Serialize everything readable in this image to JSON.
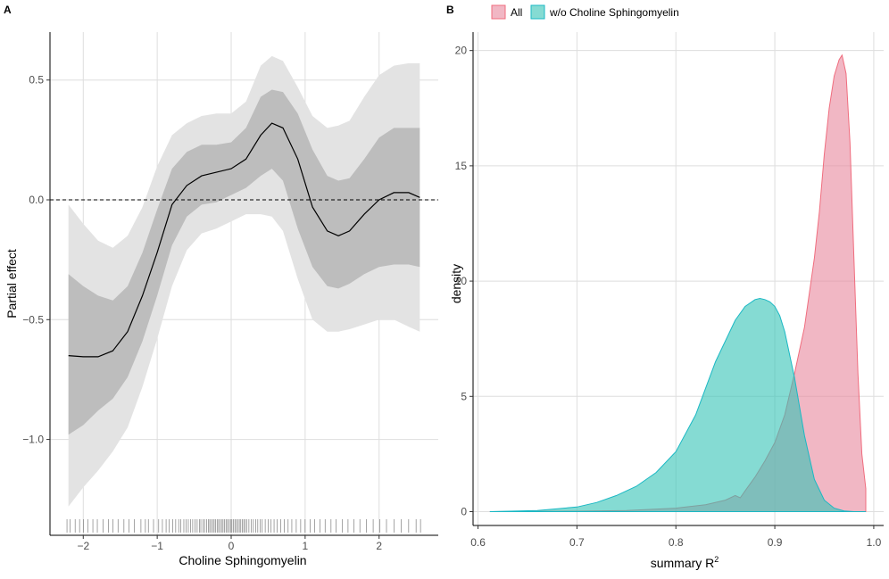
{
  "chart_data": [
    {
      "panel": "A",
      "type": "line",
      "xlabel": "Choline Sphingomyelin",
      "ylabel": "Partial effect",
      "xlim": [
        -2.45,
        2.8
      ],
      "ylim": [
        -1.4,
        0.7
      ],
      "xticks": [
        -2,
        -1,
        0,
        1,
        2
      ],
      "xtick_labels": [
        "−2",
        "−1",
        "0",
        "1",
        "2"
      ],
      "yticks": [
        -1.0,
        -0.5,
        0.0,
        0.5
      ],
      "ytick_labels": [
        "−1.0",
        "−0.5",
        "0.0",
        "0.5"
      ],
      "grid": true,
      "reference_line": 0,
      "x": [
        -2.2,
        -2.0,
        -1.8,
        -1.6,
        -1.4,
        -1.2,
        -1.0,
        -0.8,
        -0.6,
        -0.4,
        -0.2,
        0.0,
        0.2,
        0.4,
        0.55,
        0.7,
        0.9,
        1.1,
        1.3,
        1.45,
        1.6,
        1.8,
        2.0,
        2.2,
        2.4,
        2.55
      ],
      "fit": [
        -0.65,
        -0.655,
        -0.655,
        -0.63,
        -0.55,
        -0.4,
        -0.22,
        -0.02,
        0.06,
        0.1,
        0.115,
        0.13,
        0.17,
        0.27,
        0.32,
        0.3,
        0.17,
        -0.03,
        -0.13,
        -0.15,
        -0.13,
        -0.06,
        0.0,
        0.03,
        0.03,
        0.01
      ],
      "inner_band": {
        "lower": [
          -0.98,
          -0.94,
          -0.88,
          -0.83,
          -0.74,
          -0.59,
          -0.4,
          -0.19,
          -0.07,
          -0.02,
          -0.01,
          0.02,
          0.05,
          0.1,
          0.13,
          0.08,
          -0.12,
          -0.28,
          -0.36,
          -0.37,
          -0.35,
          -0.31,
          -0.28,
          -0.27,
          -0.27,
          -0.28
        ],
        "upper": [
          -0.31,
          -0.36,
          -0.4,
          -0.42,
          -0.36,
          -0.22,
          -0.04,
          0.13,
          0.2,
          0.23,
          0.23,
          0.24,
          0.3,
          0.43,
          0.46,
          0.45,
          0.36,
          0.21,
          0.1,
          0.08,
          0.09,
          0.17,
          0.26,
          0.3,
          0.3,
          0.3
        ]
      },
      "outer_band": {
        "lower": [
          -1.28,
          -1.2,
          -1.13,
          -1.05,
          -0.95,
          -0.78,
          -0.58,
          -0.36,
          -0.21,
          -0.14,
          -0.12,
          -0.09,
          -0.06,
          -0.06,
          -0.07,
          -0.13,
          -0.33,
          -0.5,
          -0.55,
          -0.55,
          -0.54,
          -0.52,
          -0.5,
          -0.5,
          -0.53,
          -0.55
        ],
        "upper": [
          -0.02,
          -0.1,
          -0.17,
          -0.2,
          -0.15,
          -0.03,
          0.14,
          0.27,
          0.32,
          0.35,
          0.36,
          0.36,
          0.41,
          0.56,
          0.6,
          0.58,
          0.47,
          0.35,
          0.3,
          0.31,
          0.33,
          0.43,
          0.52,
          0.56,
          0.57,
          0.57
        ]
      },
      "rug": [
        -2.22,
        -2.18,
        -2.11,
        -2.05,
        -2.0,
        -1.94,
        -1.87,
        -1.81,
        -1.73,
        -1.66,
        -1.6,
        -1.53,
        -1.45,
        -1.38,
        -1.31,
        -1.22,
        -1.16,
        -1.12,
        -1.05,
        -0.98,
        -0.93,
        -0.88,
        -0.84,
        -0.79,
        -0.75,
        -0.71,
        -0.68,
        -0.64,
        -0.61,
        -0.58,
        -0.55,
        -0.52,
        -0.49,
        -0.46,
        -0.43,
        -0.41,
        -0.38,
        -0.36,
        -0.33,
        -0.31,
        -0.29,
        -0.27,
        -0.25,
        -0.23,
        -0.21,
        -0.19,
        -0.17,
        -0.15,
        -0.13,
        -0.11,
        -0.09,
        -0.07,
        -0.05,
        -0.03,
        -0.01,
        0.01,
        0.03,
        0.05,
        0.07,
        0.09,
        0.11,
        0.13,
        0.15,
        0.17,
        0.19,
        0.21,
        0.24,
        0.27,
        0.3,
        0.33,
        0.36,
        0.39,
        0.42,
        0.46,
        0.5,
        0.54,
        0.58,
        0.62,
        0.67,
        0.72,
        0.77,
        0.82,
        0.88,
        0.94,
        1.0,
        1.07,
        1.13,
        1.2,
        1.27,
        1.35,
        1.42,
        1.5,
        1.58,
        1.66,
        1.74,
        1.83,
        1.92,
        2.01,
        2.1,
        2.2,
        2.3,
        2.4,
        2.5,
        2.56
      ]
    },
    {
      "panel": "B",
      "type": "area",
      "xlabel": "summary R",
      "xlabel_sup": "2",
      "ylabel": "density",
      "xlim": [
        0.595,
        1.01
      ],
      "ylim": [
        -0.6,
        20.8
      ],
      "xticks": [
        0.6,
        0.7,
        0.8,
        0.9,
        1.0
      ],
      "xtick_labels": [
        "0.6",
        "0.7",
        "0.8",
        "0.9",
        "1.0"
      ],
      "yticks": [
        0,
        5,
        10,
        15,
        20
      ],
      "ytick_labels": [
        "0",
        "5",
        "10",
        "15",
        "20"
      ],
      "grid": true,
      "legend_position": "top-left",
      "series": [
        {
          "name": "All",
          "fill": "#e8879c",
          "stroke": "#f06d7e",
          "x": [
            0.612,
            0.7,
            0.75,
            0.8,
            0.83,
            0.85,
            0.86,
            0.865,
            0.87,
            0.88,
            0.89,
            0.9,
            0.91,
            0.92,
            0.93,
            0.94,
            0.945,
            0.95,
            0.955,
            0.96,
            0.965,
            0.968,
            0.972,
            0.976,
            0.98,
            0.984,
            0.988,
            0.992
          ],
          "values": [
            0.0,
            0.02,
            0.05,
            0.15,
            0.3,
            0.5,
            0.7,
            0.6,
            0.9,
            1.5,
            2.2,
            3.0,
            4.2,
            6.0,
            8.0,
            11.0,
            13.0,
            15.5,
            17.5,
            18.9,
            19.6,
            19.8,
            19.0,
            16.0,
            11.0,
            6.0,
            2.5,
            1.0
          ]
        },
        {
          "name": "w/o Choline Sphingomyelin",
          "fill": "#33c3b5",
          "stroke": "#1ab8c4",
          "x": [
            0.612,
            0.66,
            0.7,
            0.72,
            0.74,
            0.76,
            0.78,
            0.8,
            0.82,
            0.84,
            0.86,
            0.87,
            0.88,
            0.885,
            0.89,
            0.895,
            0.9,
            0.905,
            0.91,
            0.92,
            0.93,
            0.94,
            0.95,
            0.96,
            0.97,
            0.98,
            0.992
          ],
          "values": [
            0.0,
            0.05,
            0.2,
            0.4,
            0.7,
            1.1,
            1.7,
            2.6,
            4.2,
            6.5,
            8.3,
            8.9,
            9.2,
            9.25,
            9.2,
            9.1,
            8.9,
            8.5,
            7.8,
            5.8,
            3.3,
            1.4,
            0.5,
            0.15,
            0.03,
            0.0,
            0.0
          ]
        }
      ]
    }
  ]
}
